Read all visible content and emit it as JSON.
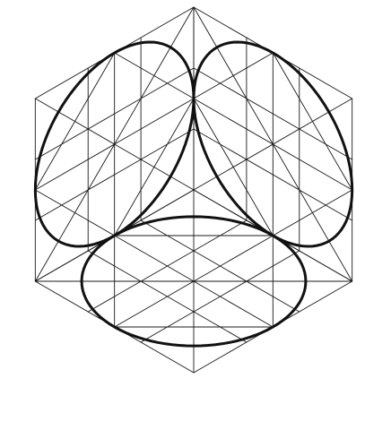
{
  "figure": {
    "kind": "isometric-cube-construction",
    "description_visible_text": "",
    "faces": [
      {
        "name": "top",
        "grid": "3x3",
        "inscribed_ellipse": true
      },
      {
        "name": "left",
        "grid": "3x3",
        "inscribed_ellipse": true
      },
      {
        "name": "right",
        "grid": "3x3",
        "inscribed_ellipse": true
      }
    ]
  },
  "colors": {
    "background": "#ffffff",
    "construction_line": "#1a1a1a",
    "ellipse": "#111111"
  }
}
